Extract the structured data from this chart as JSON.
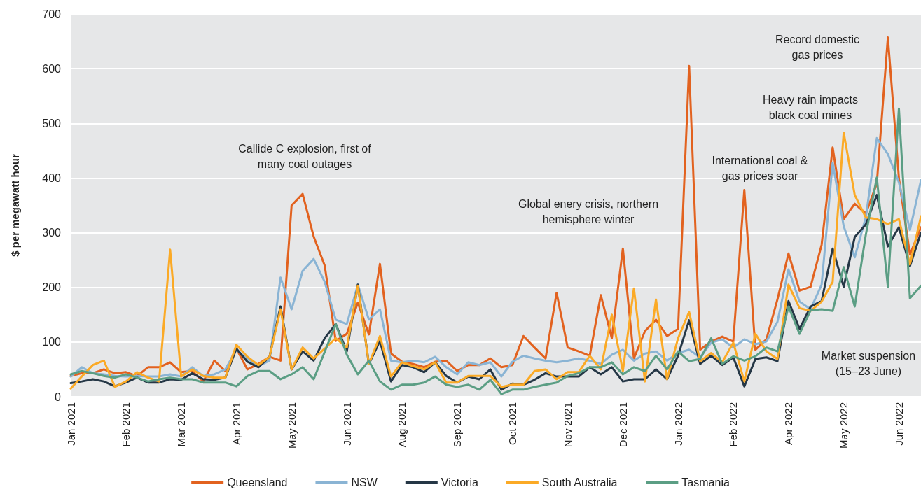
{
  "chart_data": {
    "type": "line",
    "ylabel": "$ per megawatt hour",
    "ylim": [
      0,
      700
    ],
    "yticks": [
      0,
      100,
      200,
      300,
      400,
      500,
      600,
      700
    ],
    "grid": "y",
    "legend": "bottom",
    "marker": "none",
    "line_style": "solid",
    "categories": [
      "Jan 2021",
      null,
      null,
      null,
      null,
      "Feb 2021",
      null,
      null,
      null,
      null,
      "Mar 2021",
      null,
      null,
      null,
      null,
      "Apr 2021",
      null,
      null,
      null,
      null,
      "May 2021",
      null,
      null,
      null,
      null,
      "Jun 2021",
      null,
      null,
      null,
      null,
      "Aug 2021",
      null,
      null,
      null,
      null,
      "Sep 2021",
      null,
      null,
      null,
      null,
      "Oct 2021",
      null,
      null,
      null,
      null,
      "Nov 2021",
      null,
      null,
      null,
      null,
      "Dec 2021",
      null,
      null,
      null,
      null,
      "Jan 2022",
      null,
      null,
      null,
      null,
      "Feb 2022",
      null,
      null,
      null,
      null,
      "Apr 2022",
      null,
      null,
      null,
      null,
      "May 2022",
      null,
      null,
      null,
      null,
      "Jun 2022",
      null,
      null
    ],
    "series": [
      {
        "name": "Queensland",
        "color": "#e2621f",
        "values": [
          38,
          43,
          43,
          50,
          43,
          45,
          38,
          54,
          54,
          63,
          45,
          47,
          28,
          66,
          47,
          88,
          50,
          60,
          73,
          66,
          350,
          371,
          293,
          240,
          102,
          115,
          172,
          114,
          243,
          79,
          64,
          60,
          54,
          64,
          66,
          47,
          58,
          58,
          70,
          54,
          58,
          111,
          90,
          70,
          190,
          90,
          83,
          75,
          186,
          107,
          271,
          70,
          120,
          141,
          111,
          124,
          605,
          86,
          101,
          110,
          101,
          378,
          86,
          105,
          178,
          262,
          194,
          201,
          278,
          456,
          325,
          353,
          335,
          390,
          657,
          400,
          260,
          310
        ]
      },
      {
        "name": "NSW",
        "color": "#8ab4d4",
        "values": [
          37,
          54,
          43,
          41,
          38,
          37,
          38,
          37,
          37,
          41,
          37,
          54,
          38,
          41,
          50,
          86,
          69,
          56,
          66,
          218,
          160,
          230,
          252,
          210,
          141,
          133,
          205,
          141,
          160,
          66,
          63,
          66,
          63,
          73,
          54,
          41,
          63,
          58,
          63,
          37,
          64,
          75,
          70,
          66,
          63,
          66,
          70,
          66,
          60,
          77,
          86,
          66,
          79,
          83,
          66,
          80,
          86,
          72,
          99,
          105,
          90,
          105,
          96,
          101,
          137,
          233,
          174,
          160,
          205,
          428,
          312,
          255,
          328,
          473,
          444,
          392,
          305,
          396
        ]
      },
      {
        "name": "Victoria",
        "color": "#253746",
        "values": [
          25,
          28,
          32,
          28,
          19,
          26,
          35,
          26,
          26,
          32,
          31,
          43,
          32,
          31,
          35,
          88,
          64,
          54,
          73,
          165,
          50,
          83,
          66,
          107,
          133,
          83,
          205,
          60,
          102,
          28,
          58,
          54,
          45,
          63,
          38,
          26,
          37,
          32,
          50,
          13,
          24,
          22,
          31,
          43,
          37,
          37,
          37,
          54,
          41,
          54,
          28,
          32,
          32,
          50,
          32,
          75,
          140,
          60,
          75,
          58,
          72,
          19,
          69,
          72,
          65,
          175,
          124,
          165,
          175,
          271,
          201,
          292,
          315,
          369,
          275,
          310,
          239,
          300
        ]
      },
      {
        "name": "South Australia",
        "color": "#fbaa26",
        "values": [
          15,
          37,
          58,
          66,
          18,
          28,
          45,
          35,
          28,
          269,
          37,
          50,
          38,
          35,
          35,
          95,
          73,
          58,
          73,
          160,
          50,
          90,
          70,
          88,
          107,
          90,
          203,
          60,
          111,
          37,
          63,
          56,
          50,
          63,
          26,
          26,
          38,
          38,
          38,
          18,
          22,
          22,
          47,
          50,
          32,
          45,
          45,
          75,
          50,
          150,
          47,
          198,
          28,
          178,
          32,
          107,
          155,
          65,
          80,
          63,
          99,
          28,
          115,
          83,
          69,
          205,
          162,
          157,
          174,
          210,
          483,
          369,
          328,
          325,
          316,
          325,
          242,
          330
        ]
      },
      {
        "name": "Tasmania",
        "color": "#5b9e84",
        "values": [
          41,
          47,
          43,
          38,
          35,
          41,
          35,
          28,
          32,
          35,
          32,
          32,
          26,
          26,
          26,
          19,
          38,
          47,
          47,
          32,
          41,
          54,
          32,
          82,
          133,
          77,
          41,
          66,
          28,
          13,
          22,
          22,
          26,
          37,
          22,
          18,
          22,
          13,
          31,
          5,
          13,
          13,
          18,
          22,
          26,
          38,
          43,
          54,
          54,
          63,
          41,
          54,
          47,
          75,
          50,
          83,
          65,
          69,
          107,
          60,
          74,
          66,
          74,
          90,
          83,
          165,
          115,
          158,
          160,
          157,
          237,
          165,
          296,
          401,
          201,
          527,
          180,
          203
        ]
      }
    ],
    "annotations": [
      "Callide C explosion, first of\nmany coal outages",
      "Global enery crisis, northern\nhemisphere winter",
      "International coal &\ngas prices soar",
      "Heavy rain impacts\nblack coal mines",
      "Record domestic\ngas prices",
      "Market suspension\n(15–23 June)"
    ]
  }
}
